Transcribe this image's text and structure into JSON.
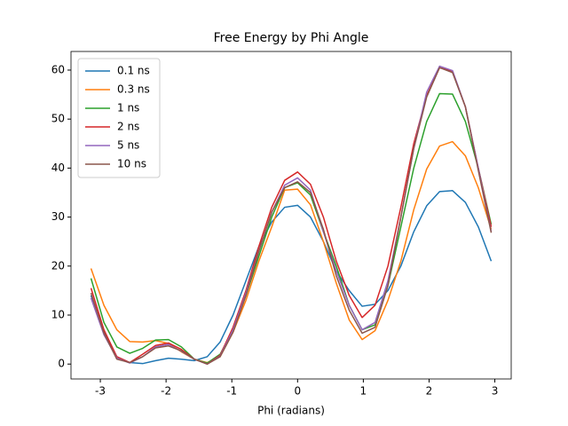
{
  "chart_data": {
    "type": "line",
    "title": "Free Energy by Phi Angle",
    "x_label": "Phi (radians)",
    "x": [
      -3.1416,
      -2.9452,
      -2.7489,
      -2.5525,
      -2.3562,
      -2.1598,
      -1.9635,
      -1.7671,
      -1.5708,
      -1.3744,
      -1.1781,
      -0.9817,
      -0.7854,
      -0.589,
      -0.3927,
      -0.1963,
      0,
      0.1963,
      0.3927,
      0.589,
      0.7854,
      0.9817,
      1.1781,
      1.3744,
      1.5708,
      1.7671,
      1.9635,
      2.1598,
      2.3562,
      2.5525,
      2.7489,
      2.9452
    ],
    "series": [
      {
        "name": "0.1 ns",
        "color": "#1f77b4",
        "values": [
          14,
          6.5,
          1.5,
          0.3,
          0.1,
          0.7,
          1.2,
          1.0,
          0.7,
          1.5,
          4.5,
          10,
          17,
          24,
          29,
          32,
          32.4,
          30,
          25,
          19,
          15,
          11.8,
          12.2,
          15,
          20,
          27,
          32.3,
          35.2,
          35.4,
          33,
          28,
          21
        ]
      },
      {
        "name": "0.3 ns",
        "color": "#ff7f0e",
        "values": [
          19.5,
          12,
          7,
          4.6,
          4.5,
          4.8,
          4.2,
          2.5,
          1,
          0.3,
          1.5,
          6.5,
          13,
          21,
          28,
          35.5,
          35.7,
          32.5,
          25,
          16.5,
          9,
          5,
          6.8,
          13,
          21,
          31.5,
          39.8,
          44.5,
          45.4,
          42.5,
          36,
          27.5
        ]
      },
      {
        "name": "1 ns",
        "color": "#2ca02c",
        "values": [
          17.5,
          8.5,
          3.5,
          2.2,
          3.2,
          4.9,
          5.0,
          3.5,
          1.0,
          0.2,
          2,
          7,
          14,
          22,
          30,
          36,
          37,
          34.5,
          27,
          20,
          12,
          7,
          8,
          16,
          28,
          40,
          49.5,
          55.2,
          55.1,
          49.5,
          40,
          28.5
        ]
      },
      {
        "name": "2 ns",
        "color": "#d62728",
        "values": [
          15.5,
          7,
          1.5,
          0.3,
          2,
          3.8,
          4.3,
          3.0,
          1.0,
          0,
          1.8,
          7.5,
          15,
          24,
          32,
          37.5,
          39.2,
          36.7,
          30,
          21,
          14,
          9.5,
          12,
          20,
          32,
          45,
          54.8,
          60.5,
          59.8,
          52.5,
          40,
          28
        ]
      },
      {
        "name": "5 ns",
        "color": "#9467bd",
        "values": [
          13.5,
          6,
          1.2,
          0.2,
          1.5,
          3.5,
          4.0,
          2.6,
          1.0,
          0,
          1.6,
          7,
          14.5,
          23,
          31,
          36.5,
          38,
          35.5,
          27,
          19,
          12,
          7,
          8.5,
          17,
          30,
          44,
          55.5,
          60.8,
          59.9,
          52.5,
          40,
          27
        ]
      },
      {
        "name": "10 ns",
        "color": "#8c564b",
        "values": [
          14.5,
          6.3,
          1.0,
          0.3,
          1.5,
          3.3,
          3.7,
          2.7,
          1.0,
          0,
          1.5,
          6.5,
          14,
          23,
          31,
          36,
          37.2,
          35,
          27.5,
          18,
          11,
          6.3,
          7.5,
          16,
          30,
          44,
          54.5,
          60.5,
          59.5,
          52.5,
          39.5,
          26.8
        ]
      }
    ],
    "xlim": [
      -3.446,
      3.249
    ],
    "ylim": [
      -3.04,
      63.8
    ],
    "xticks": [
      -3,
      -2,
      -1,
      0,
      1,
      2,
      3
    ],
    "yticks": [
      0,
      10,
      20,
      30,
      40,
      50,
      60
    ],
    "grid": false,
    "legend": "upper left"
  }
}
